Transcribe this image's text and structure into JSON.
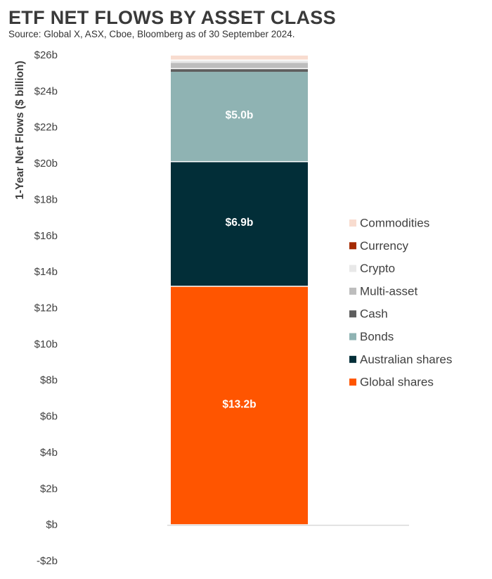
{
  "title": "ETF NET FLOWS BY ASSET CLASS",
  "subtitle": "Source: Global X, ASX, Cboe, Bloomberg as of 30 September 2024.",
  "chart_data": {
    "type": "bar",
    "stacked": true,
    "title": "ETF NET FLOWS BY ASSET CLASS",
    "subtitle": "Source: Global X, ASX, Cboe, Bloomberg as of 30 September 2024.",
    "ylabel": "1-Year Net Flows ($ billion)",
    "xlabel": "",
    "ylim": [
      -2,
      26
    ],
    "yticks": [
      -2,
      0,
      2,
      4,
      6,
      8,
      10,
      12,
      14,
      16,
      18,
      20,
      22,
      24,
      26
    ],
    "ytick_labels": [
      "-$2b",
      "$b",
      "$2b",
      "$4b",
      "$6b",
      "$8b",
      "$10b",
      "$12b",
      "$14b",
      "$16b",
      "$18b",
      "$20b",
      "$22b",
      "$24b",
      "$26b"
    ],
    "grid": false,
    "legend_position": "right",
    "series": [
      {
        "name": "Global shares",
        "value": 13.2,
        "color": "#FF5500",
        "label": "$13.2b"
      },
      {
        "name": "Australian shares",
        "value": 6.9,
        "color": "#022E38",
        "label": "$6.9b"
      },
      {
        "name": "Bonds",
        "value": 5.0,
        "color": "#8FB3B3",
        "label": "$5.0b"
      },
      {
        "name": "Cash",
        "value": 0.15,
        "color": "#5E5E5E",
        "label": ""
      },
      {
        "name": "Multi-asset",
        "value": 0.35,
        "color": "#BDBDBD",
        "label": ""
      },
      {
        "name": "Crypto",
        "value": 0.12,
        "color": "#E8E8E8",
        "label": ""
      },
      {
        "name": "Currency",
        "value": 0.0,
        "color": "#A52A00",
        "label": ""
      },
      {
        "name": "Commodities",
        "value": 0.28,
        "color": "#F8DCCF",
        "label": ""
      }
    ],
    "legend_order": [
      "Commodities",
      "Currency",
      "Crypto",
      "Multi-asset",
      "Cash",
      "Bonds",
      "Australian shares",
      "Global shares"
    ]
  }
}
